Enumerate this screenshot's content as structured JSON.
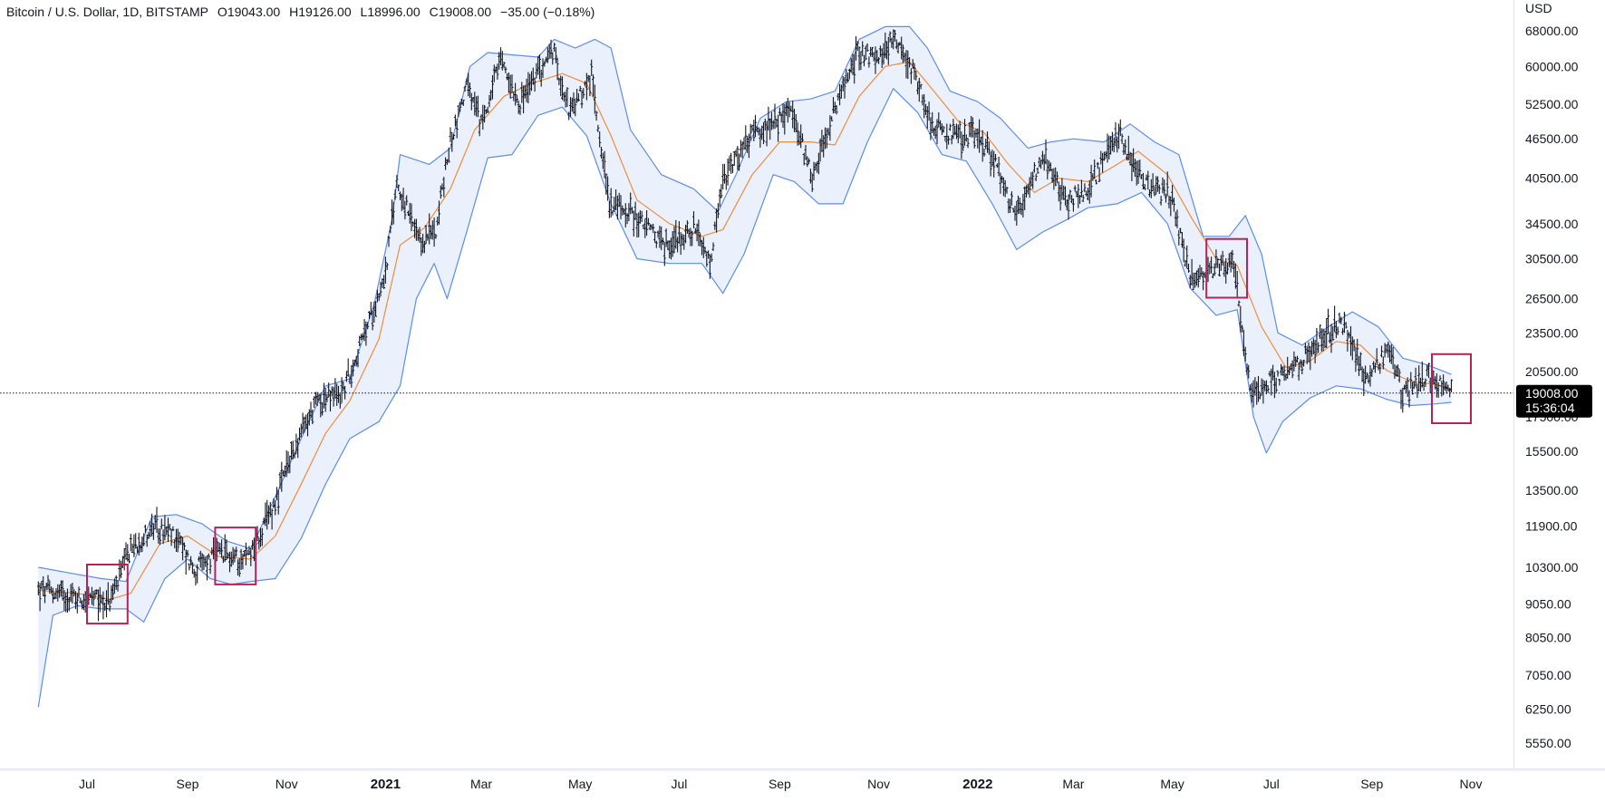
{
  "header": {
    "symbol": "Bitcoin / U.S. Dollar, 1D, BITSTAMP",
    "open_key": "O",
    "open": "19043.00",
    "high_key": "H",
    "high": "19126.00",
    "low_key": "L",
    "low": "18996.00",
    "close_key": "C",
    "close": "19008.00",
    "change": "−35.00 (−0.18%)"
  },
  "price_axis": {
    "currency": "USD",
    "last_price": "19008.00",
    "countdown": "15:36:04"
  },
  "colors": {
    "band": "#5b8def",
    "band_fill": "#eaf1fd",
    "basis": "#f08c3c",
    "candle": "#131722",
    "highlight_box": "#b3245b",
    "last_price_tag": "#000000",
    "grid_line": "#e0e3eb"
  },
  "chart_data": {
    "type": "line",
    "title": "Bitcoin / U.S. Dollar, 1D, BITSTAMP",
    "scale": "log",
    "x_range": [
      "2020-06-01",
      "2022-11-20"
    ],
    "y_range": [
      5000,
      72000
    ],
    "x_ticks": [
      {
        "label": "Jul",
        "date": "2020-07-01",
        "bold": false
      },
      {
        "label": "Sep",
        "date": "2020-09-01",
        "bold": false
      },
      {
        "label": "Nov",
        "date": "2020-11-01",
        "bold": false
      },
      {
        "label": "2021",
        "date": "2021-01-01",
        "bold": true
      },
      {
        "label": "Mar",
        "date": "2021-03-01",
        "bold": false
      },
      {
        "label": "May",
        "date": "2021-05-01",
        "bold": false
      },
      {
        "label": "Jul",
        "date": "2021-07-01",
        "bold": false
      },
      {
        "label": "Sep",
        "date": "2021-09-01",
        "bold": false
      },
      {
        "label": "Nov",
        "date": "2021-11-01",
        "bold": false
      },
      {
        "label": "2022",
        "date": "2022-01-01",
        "bold": true
      },
      {
        "label": "Mar",
        "date": "2022-03-01",
        "bold": false
      },
      {
        "label": "May",
        "date": "2022-05-01",
        "bold": false
      },
      {
        "label": "Jul",
        "date": "2022-07-01",
        "bold": false
      },
      {
        "label": "Sep",
        "date": "2022-09-01",
        "bold": false
      },
      {
        "label": "Nov",
        "date": "2022-11-01",
        "bold": false
      }
    ],
    "y_ticks": [
      "68000.00",
      "60000.00",
      "52500.00",
      "46500.00",
      "40500.00",
      "34500.00",
      "30500.00",
      "26500.00",
      "23500.00",
      "20500.00",
      "17500.00",
      "15500.00",
      "13500.00",
      "11900.00",
      "10300.00",
      "9050.00",
      "8050.00",
      "7050.00",
      "6250.00",
      "5550.00"
    ],
    "last_price": 19008,
    "close_points": [
      [
        "2020-06-01",
        9500
      ],
      [
        "2020-06-15",
        9400
      ],
      [
        "2020-07-01",
        9200
      ],
      [
        "2020-07-15",
        9150
      ],
      [
        "2020-07-28",
        11000
      ],
      [
        "2020-08-10",
        11800
      ],
      [
        "2020-08-25",
        11500
      ],
      [
        "2020-09-05",
        10200
      ],
      [
        "2020-09-20",
        10800
      ],
      [
        "2020-10-05",
        10600
      ],
      [
        "2020-10-15",
        11400
      ],
      [
        "2020-10-25",
        13000
      ],
      [
        "2020-11-05",
        15500
      ],
      [
        "2020-11-20",
        18500
      ],
      [
        "2020-12-05",
        19000
      ],
      [
        "2020-12-18",
        23000
      ],
      [
        "2021-01-01",
        29000
      ],
      [
        "2021-01-08",
        40000
      ],
      [
        "2021-01-22",
        32000
      ],
      [
        "2021-02-01",
        34000
      ],
      [
        "2021-02-10",
        46000
      ],
      [
        "2021-02-20",
        56000
      ],
      [
        "2021-03-01",
        49000
      ],
      [
        "2021-03-13",
        61000
      ],
      [
        "2021-03-25",
        53000
      ],
      [
        "2021-04-14",
        63500
      ],
      [
        "2021-04-25",
        51000
      ],
      [
        "2021-05-08",
        58000
      ],
      [
        "2021-05-19",
        37000
      ],
      [
        "2021-06-01",
        36000
      ],
      [
        "2021-06-22",
        32000
      ],
      [
        "2021-07-10",
        33800
      ],
      [
        "2021-07-20",
        29800
      ],
      [
        "2021-07-28",
        40000
      ],
      [
        "2021-08-14",
        47000
      ],
      [
        "2021-08-28",
        48500
      ],
      [
        "2021-09-07",
        52000
      ],
      [
        "2021-09-21",
        41000
      ],
      [
        "2021-10-05",
        51500
      ],
      [
        "2021-10-20",
        64000
      ],
      [
        "2021-11-01",
        61000
      ],
      [
        "2021-11-10",
        67500
      ],
      [
        "2021-11-25",
        57000
      ],
      [
        "2021-12-04",
        49000
      ],
      [
        "2021-12-20",
        46500
      ],
      [
        "2022-01-01",
        47500
      ],
      [
        "2022-01-12",
        42500
      ],
      [
        "2022-01-24",
        35500
      ],
      [
        "2022-02-10",
        44000
      ],
      [
        "2022-02-24",
        37500
      ],
      [
        "2022-03-10",
        39000
      ],
      [
        "2022-03-29",
        47500
      ],
      [
        "2022-04-12",
        40000
      ],
      [
        "2022-04-30",
        38000
      ],
      [
        "2022-05-12",
        28500
      ],
      [
        "2022-05-25",
        29500
      ],
      [
        "2022-06-08",
        30200
      ],
      [
        "2022-06-18",
        19000
      ],
      [
        "2022-06-30",
        19800
      ],
      [
        "2022-07-14",
        20500
      ],
      [
        "2022-08-01",
        23300
      ],
      [
        "2022-08-14",
        24300
      ],
      [
        "2022-08-28",
        20000
      ],
      [
        "2022-09-12",
        22300
      ],
      [
        "2022-09-20",
        18900
      ],
      [
        "2022-10-05",
        20300
      ],
      [
        "2022-10-20",
        19008
      ]
    ],
    "bollinger_upper": [
      [
        "2020-06-01",
        10300
      ],
      [
        "2020-06-20",
        10100
      ],
      [
        "2020-07-10",
        9900
      ],
      [
        "2020-07-25",
        9800
      ],
      [
        "2020-08-10",
        12300
      ],
      [
        "2020-08-25",
        12400
      ],
      [
        "2020-09-10",
        12000
      ],
      [
        "2020-09-25",
        11300
      ],
      [
        "2020-10-10",
        11000
      ],
      [
        "2020-10-25",
        13200
      ],
      [
        "2020-11-10",
        16200
      ],
      [
        "2020-11-25",
        19500
      ],
      [
        "2020-12-10",
        20000
      ],
      [
        "2020-12-25",
        26000
      ],
      [
        "2021-01-05",
        35000
      ],
      [
        "2021-01-10",
        44000
      ],
      [
        "2021-01-28",
        42500
      ],
      [
        "2021-02-10",
        45000
      ],
      [
        "2021-02-22",
        60000
      ],
      [
        "2021-03-05",
        63000
      ],
      [
        "2021-03-20",
        62500
      ],
      [
        "2021-04-05",
        62000
      ],
      [
        "2021-04-15",
        66000
      ],
      [
        "2021-04-28",
        64000
      ],
      [
        "2021-05-10",
        66000
      ],
      [
        "2021-05-20",
        64000
      ],
      [
        "2021-06-01",
        48000
      ],
      [
        "2021-06-20",
        41000
      ],
      [
        "2021-07-10",
        39000
      ],
      [
        "2021-07-25",
        36000
      ],
      [
        "2021-08-05",
        41000
      ],
      [
        "2021-08-20",
        50000
      ],
      [
        "2021-09-05",
        53000
      ],
      [
        "2021-09-20",
        53500
      ],
      [
        "2021-10-05",
        55000
      ],
      [
        "2021-10-20",
        66000
      ],
      [
        "2021-11-05",
        69000
      ],
      [
        "2021-11-20",
        69000
      ],
      [
        "2021-12-01",
        64000
      ],
      [
        "2021-12-15",
        55000
      ],
      [
        "2022-01-01",
        53000
      ],
      [
        "2022-01-15",
        50000
      ],
      [
        "2022-02-01",
        45000
      ],
      [
        "2022-02-15",
        46000
      ],
      [
        "2022-03-01",
        46500
      ],
      [
        "2022-03-20",
        46000
      ],
      [
        "2022-04-05",
        49000
      ],
      [
        "2022-04-20",
        46000
      ],
      [
        "2022-05-05",
        44000
      ],
      [
        "2022-05-20",
        33000
      ],
      [
        "2022-06-05",
        33000
      ],
      [
        "2022-06-15",
        35500
      ],
      [
        "2022-06-25",
        31000
      ],
      [
        "2022-07-05",
        23500
      ],
      [
        "2022-07-20",
        22500
      ],
      [
        "2022-08-05",
        24000
      ],
      [
        "2022-08-20",
        25300
      ],
      [
        "2022-09-05",
        24000
      ],
      [
        "2022-09-20",
        21500
      ],
      [
        "2022-10-05",
        21000
      ],
      [
        "2022-10-20",
        20300
      ]
    ],
    "bollinger_basis": [
      [
        "2020-06-01",
        9500
      ],
      [
        "2020-06-25",
        9400
      ],
      [
        "2020-07-15",
        9200
      ],
      [
        "2020-07-28",
        9400
      ],
      [
        "2020-08-15",
        11200
      ],
      [
        "2020-09-01",
        11500
      ],
      [
        "2020-09-20",
        10700
      ],
      [
        "2020-10-10",
        10600
      ],
      [
        "2020-10-25",
        11500
      ],
      [
        "2020-11-10",
        13800
      ],
      [
        "2020-11-25",
        16500
      ],
      [
        "2020-12-10",
        18500
      ],
      [
        "2020-12-28",
        23000
      ],
      [
        "2021-01-10",
        32000
      ],
      [
        "2021-01-25",
        34000
      ],
      [
        "2021-02-10",
        39000
      ],
      [
        "2021-02-25",
        48000
      ],
      [
        "2021-03-15",
        54000
      ],
      [
        "2021-04-01",
        56500
      ],
      [
        "2021-04-20",
        58500
      ],
      [
        "2021-05-05",
        56500
      ],
      [
        "2021-05-20",
        47000
      ],
      [
        "2021-06-05",
        37500
      ],
      [
        "2021-06-25",
        34500
      ],
      [
        "2021-07-15",
        33000
      ],
      [
        "2021-07-28",
        33800
      ],
      [
        "2021-08-15",
        41000
      ],
      [
        "2021-09-01",
        46000
      ],
      [
        "2021-09-20",
        46000
      ],
      [
        "2021-10-05",
        45500
      ],
      [
        "2021-10-20",
        54000
      ],
      [
        "2021-11-05",
        60000
      ],
      [
        "2021-11-20",
        61000
      ],
      [
        "2021-12-05",
        55000
      ],
      [
        "2021-12-20",
        49500
      ],
      [
        "2022-01-05",
        47500
      ],
      [
        "2022-01-20",
        42500
      ],
      [
        "2022-02-05",
        38500
      ],
      [
        "2022-02-20",
        40500
      ],
      [
        "2022-03-10",
        40000
      ],
      [
        "2022-03-28",
        42500
      ],
      [
        "2022-04-10",
        44500
      ],
      [
        "2022-04-28",
        41000
      ],
      [
        "2022-05-12",
        35500
      ],
      [
        "2022-05-28",
        30500
      ],
      [
        "2022-06-10",
        29800
      ],
      [
        "2022-06-25",
        24000
      ],
      [
        "2022-07-10",
        20800
      ],
      [
        "2022-07-25",
        21300
      ],
      [
        "2022-08-10",
        22800
      ],
      [
        "2022-08-25",
        22500
      ],
      [
        "2022-09-10",
        20600
      ],
      [
        "2022-09-25",
        19800
      ],
      [
        "2022-10-10",
        19600
      ],
      [
        "2022-10-20",
        19300
      ]
    ],
    "bollinger_lower": [
      [
        "2020-06-01",
        6300
      ],
      [
        "2020-06-10",
        8700
      ],
      [
        "2020-06-25",
        9000
      ],
      [
        "2020-07-10",
        8900
      ],
      [
        "2020-07-25",
        8900
      ],
      [
        "2020-08-05",
        8500
      ],
      [
        "2020-08-18",
        9900
      ],
      [
        "2020-09-01",
        10600
      ],
      [
        "2020-09-15",
        9900
      ],
      [
        "2020-09-28",
        9700
      ],
      [
        "2020-10-10",
        9800
      ],
      [
        "2020-10-25",
        9900
      ],
      [
        "2020-11-10",
        11400
      ],
      [
        "2020-11-25",
        13800
      ],
      [
        "2020-12-10",
        16200
      ],
      [
        "2020-12-28",
        17200
      ],
      [
        "2021-01-10",
        19500
      ],
      [
        "2021-01-20",
        26500
      ],
      [
        "2021-01-31",
        30000
      ],
      [
        "2021-02-08",
        26500
      ],
      [
        "2021-02-20",
        33500
      ],
      [
        "2021-03-05",
        43500
      ],
      [
        "2021-03-20",
        44000
      ],
      [
        "2021-04-05",
        50500
      ],
      [
        "2021-04-20",
        52000
      ],
      [
        "2021-05-05",
        47000
      ],
      [
        "2021-05-20",
        37000
      ],
      [
        "2021-06-05",
        30500
      ],
      [
        "2021-06-25",
        30000
      ],
      [
        "2021-07-15",
        30000
      ],
      [
        "2021-07-28",
        27000
      ],
      [
        "2021-08-10",
        31000
      ],
      [
        "2021-08-28",
        41000
      ],
      [
        "2021-09-10",
        40000
      ],
      [
        "2021-09-25",
        37000
      ],
      [
        "2021-10-10",
        37000
      ],
      [
        "2021-10-25",
        46000
      ],
      [
        "2021-11-10",
        55500
      ],
      [
        "2021-11-25",
        51000
      ],
      [
        "2021-12-10",
        44000
      ],
      [
        "2021-12-25",
        43000
      ],
      [
        "2022-01-10",
        37000
      ],
      [
        "2022-01-25",
        31500
      ],
      [
        "2022-02-10",
        33500
      ],
      [
        "2022-02-25",
        35000
      ],
      [
        "2022-03-10",
        36500
      ],
      [
        "2022-03-28",
        37000
      ],
      [
        "2022-04-12",
        38500
      ],
      [
        "2022-04-28",
        34500
      ],
      [
        "2022-05-12",
        27500
      ],
      [
        "2022-05-28",
        25000
      ],
      [
        "2022-06-10",
        25500
      ],
      [
        "2022-06-20",
        17500
      ],
      [
        "2022-06-28",
        15400
      ],
      [
        "2022-07-08",
        17200
      ],
      [
        "2022-07-25",
        18700
      ],
      [
        "2022-08-10",
        19500
      ],
      [
        "2022-08-25",
        19300
      ],
      [
        "2022-09-10",
        18600
      ],
      [
        "2022-09-25",
        18200
      ],
      [
        "2022-10-10",
        18300
      ],
      [
        "2022-10-20",
        18400
      ]
    ],
    "highlight_boxes": [
      {
        "start": "2020-07-01",
        "end": "2020-07-26",
        "high": 10400,
        "low": 8450
      },
      {
        "start": "2020-09-18",
        "end": "2020-10-13",
        "high": 11850,
        "low": 9700
      },
      {
        "start": "2022-05-22",
        "end": "2022-06-16",
        "high": 32700,
        "low": 26600
      },
      {
        "start": "2022-10-08",
        "end": "2022-11-01",
        "high": 21800,
        "low": 17100
      }
    ]
  }
}
